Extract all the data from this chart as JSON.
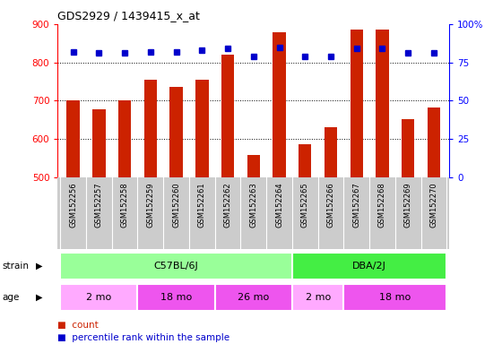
{
  "title": "GDS2929 / 1439415_x_at",
  "samples": [
    "GSM152256",
    "GSM152257",
    "GSM152258",
    "GSM152259",
    "GSM152260",
    "GSM152261",
    "GSM152262",
    "GSM152263",
    "GSM152264",
    "GSM152265",
    "GSM152266",
    "GSM152267",
    "GSM152268",
    "GSM152269",
    "GSM152270"
  ],
  "counts": [
    700,
    678,
    700,
    755,
    735,
    755,
    820,
    558,
    878,
    585,
    630,
    885,
    885,
    652,
    683
  ],
  "percentile_ranks": [
    82,
    81,
    81,
    82,
    82,
    83,
    84,
    79,
    85,
    79,
    79,
    84,
    84,
    81,
    81
  ],
  "ymin": 500,
  "ymax": 900,
  "yticks_left": [
    500,
    600,
    700,
    800,
    900
  ],
  "yticks_right": [
    0,
    25,
    50,
    75,
    100
  ],
  "bar_color": "#CC2200",
  "dot_color": "#0000CC",
  "strain_groups": [
    {
      "label": "C57BL/6J",
      "start": 0,
      "end": 9,
      "color": "#99FF99"
    },
    {
      "label": "DBA/2J",
      "start": 9,
      "end": 15,
      "color": "#44EE44"
    }
  ],
  "age_groups": [
    {
      "label": "2 mo",
      "start": 0,
      "end": 3,
      "color": "#FFAAFF"
    },
    {
      "label": "18 mo",
      "start": 3,
      "end": 6,
      "color": "#EE55EE"
    },
    {
      "label": "26 mo",
      "start": 6,
      "end": 9,
      "color": "#EE55EE"
    },
    {
      "label": "2 mo",
      "start": 9,
      "end": 11,
      "color": "#FFAAFF"
    },
    {
      "label": "18 mo",
      "start": 11,
      "end": 15,
      "color": "#EE55EE"
    }
  ],
  "tick_area_color": "#CCCCCC",
  "bar_width": 0.5
}
